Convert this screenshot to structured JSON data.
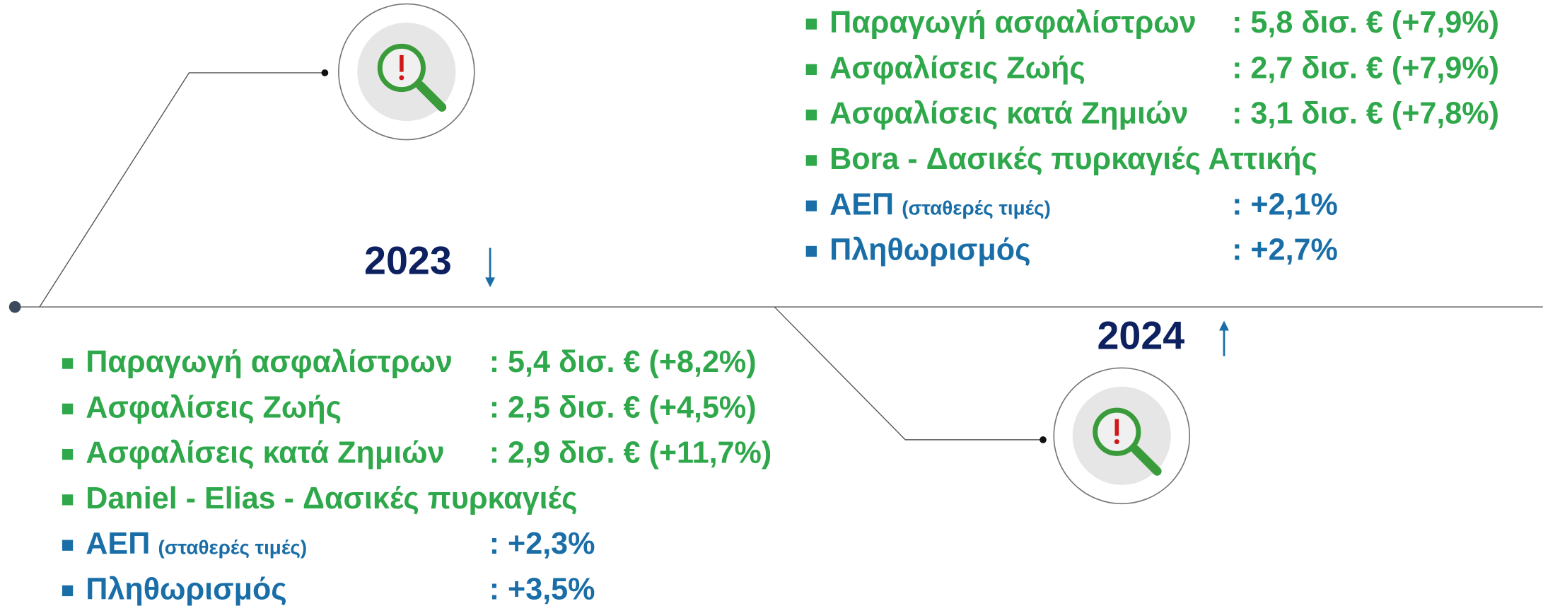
{
  "timeline": [
    {
      "year": "2023",
      "items": [
        {
          "label": "Παραγωγή ασφαλίστρων",
          "value": ":  5,4 δισ. €  (+8,2%)"
        },
        {
          "label": "Ασφαλίσεις Ζωής",
          "value": ":  2,5 δισ. €  (+4,5%)"
        },
        {
          "label": "Ασφαλίσεις κατά Ζημιών",
          "value": ":  2,9 δισ. € (+11,7%)"
        },
        {
          "label": "Daniel - Elias - Δασικές πυρκαγιές"
        },
        {
          "label": "ΑΕΠ",
          "note": "(σταθερές τιμές)",
          "value": ":  +2,3%"
        },
        {
          "label": "Πληθωρισμός",
          "value": ":  +3,5%"
        }
      ]
    },
    {
      "year": "2024",
      "items": [
        {
          "label": "Παραγωγή ασφαλίστρων",
          "value": ":  5,8 δισ. € (+7,9%)"
        },
        {
          "label": "Ασφαλίσεις Ζωής",
          "value": ":  2,7 δισ. € (+7,9%)"
        },
        {
          "label": "Ασφαλίσεις κατά Ζημιών",
          "value": ":  3,1 δισ. € (+7,8%)"
        },
        {
          "label": "Bora - Δασικές πυρκαγιές Αττικής"
        },
        {
          "label": "ΑΕΠ",
          "note": "(σταθερές τιμές)",
          "value": ":  +2,1%"
        },
        {
          "label": "Πληθωρισμός",
          "value": ":  +2,7%"
        }
      ]
    }
  ]
}
